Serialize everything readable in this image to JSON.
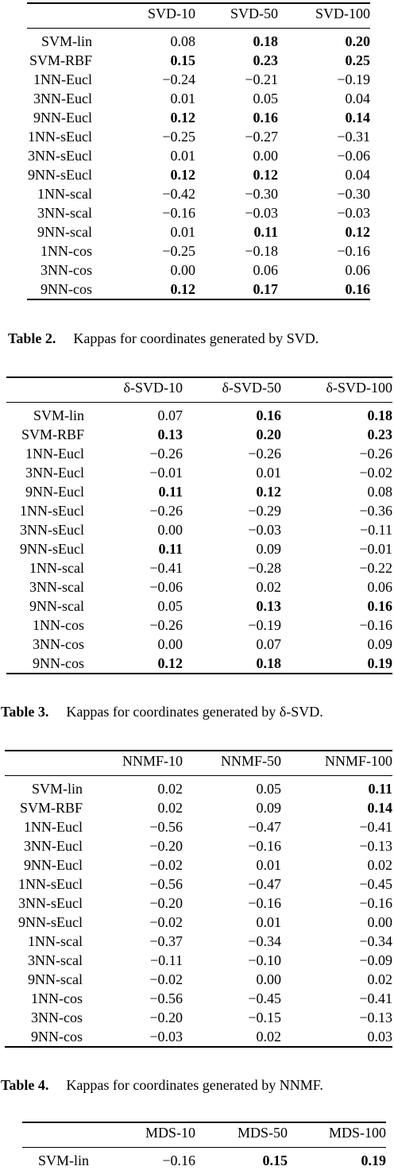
{
  "tables": [
    {
      "label": "Table 2.",
      "caption": "Kappas for coordinates generated by SVD.",
      "headers": [
        "SVD-10",
        "SVD-50",
        "SVD-100"
      ],
      "rows": [
        {
          "name": "SVM-lin",
          "values": [
            "0.08",
            "0.18",
            "0.20"
          ],
          "bold": [
            false,
            true,
            true
          ]
        },
        {
          "name": "SVM-RBF",
          "values": [
            "0.15",
            "0.23",
            "0.25"
          ],
          "bold": [
            true,
            true,
            true
          ]
        },
        {
          "name": "1NN-Eucl",
          "values": [
            "−0.24",
            "−0.21",
            "−0.19"
          ],
          "bold": [
            false,
            false,
            false
          ]
        },
        {
          "name": "3NN-Eucl",
          "values": [
            "0.01",
            "0.05",
            "0.04"
          ],
          "bold": [
            false,
            false,
            false
          ]
        },
        {
          "name": "9NN-Eucl",
          "values": [
            "0.12",
            "0.16",
            "0.14"
          ],
          "bold": [
            true,
            true,
            true
          ]
        },
        {
          "name": "1NN-sEucl",
          "values": [
            "−0.25",
            "−0.27",
            "−0.31"
          ],
          "bold": [
            false,
            false,
            false
          ]
        },
        {
          "name": "3NN-sEucl",
          "values": [
            "0.01",
            "0.00",
            "−0.06"
          ],
          "bold": [
            false,
            false,
            false
          ]
        },
        {
          "name": "9NN-sEucl",
          "values": [
            "0.12",
            "0.12",
            "0.04"
          ],
          "bold": [
            true,
            true,
            false
          ]
        },
        {
          "name": "1NN-scal",
          "values": [
            "−0.42",
            "−0.30",
            "−0.30"
          ],
          "bold": [
            false,
            false,
            false
          ]
        },
        {
          "name": "3NN-scal",
          "values": [
            "−0.16",
            "−0.03",
            "−0.03"
          ],
          "bold": [
            false,
            false,
            false
          ]
        },
        {
          "name": "9NN-scal",
          "values": [
            "0.01",
            "0.11",
            "0.12"
          ],
          "bold": [
            false,
            true,
            true
          ]
        },
        {
          "name": "1NN-cos",
          "values": [
            "−0.25",
            "−0.18",
            "−0.16"
          ],
          "bold": [
            false,
            false,
            false
          ]
        },
        {
          "name": "3NN-cos",
          "values": [
            "0.00",
            "0.06",
            "0.06"
          ],
          "bold": [
            false,
            false,
            false
          ]
        },
        {
          "name": "9NN-cos",
          "values": [
            "0.12",
            "0.17",
            "0.16"
          ],
          "bold": [
            true,
            true,
            true
          ]
        }
      ]
    },
    {
      "label": "Table 3.",
      "caption": "Kappas for coordinates generated by δ-SVD.",
      "headers": [
        "δ-SVD-10",
        "δ-SVD-50",
        "δ-SVD-100"
      ],
      "rows": [
        {
          "name": "SVM-lin",
          "values": [
            "0.07",
            "0.16",
            "0.18"
          ],
          "bold": [
            false,
            true,
            true
          ]
        },
        {
          "name": "SVM-RBF",
          "values": [
            "0.13",
            "0.20",
            "0.23"
          ],
          "bold": [
            true,
            true,
            true
          ]
        },
        {
          "name": "1NN-Eucl",
          "values": [
            "−0.26",
            "−0.26",
            "−0.26"
          ],
          "bold": [
            false,
            false,
            false
          ]
        },
        {
          "name": "3NN-Eucl",
          "values": [
            "−0.01",
            "0.01",
            "−0.02"
          ],
          "bold": [
            false,
            false,
            false
          ]
        },
        {
          "name": "9NN-Eucl",
          "values": [
            "0.11",
            "0.12",
            "0.08"
          ],
          "bold": [
            true,
            true,
            false
          ]
        },
        {
          "name": "1NN-sEucl",
          "values": [
            "−0.26",
            "−0.29",
            "−0.36"
          ],
          "bold": [
            false,
            false,
            false
          ]
        },
        {
          "name": "3NN-sEucl",
          "values": [
            "0.00",
            "−0.03",
            "−0.11"
          ],
          "bold": [
            false,
            false,
            false
          ]
        },
        {
          "name": "9NN-sEucl",
          "values": [
            "0.11",
            "0.09",
            "−0.01"
          ],
          "bold": [
            true,
            false,
            false
          ]
        },
        {
          "name": "1NN-scal",
          "values": [
            "−0.41",
            "−0.28",
            "−0.22"
          ],
          "bold": [
            false,
            false,
            false
          ]
        },
        {
          "name": "3NN-scal",
          "values": [
            "−0.06",
            "0.02",
            "0.06"
          ],
          "bold": [
            false,
            false,
            false
          ]
        },
        {
          "name": "9NN-scal",
          "values": [
            "0.05",
            "0.13",
            "0.16"
          ],
          "bold": [
            false,
            true,
            true
          ]
        },
        {
          "name": "1NN-cos",
          "values": [
            "−0.26",
            "−0.19",
            "−0.16"
          ],
          "bold": [
            false,
            false,
            false
          ]
        },
        {
          "name": "3NN-cos",
          "values": [
            "0.00",
            "0.07",
            "0.09"
          ],
          "bold": [
            false,
            false,
            false
          ]
        },
        {
          "name": "9NN-cos",
          "values": [
            "0.12",
            "0.18",
            "0.19"
          ],
          "bold": [
            true,
            true,
            true
          ]
        }
      ]
    },
    {
      "label": "Table 4.",
      "caption": "Kappas for coordinates generated by NNMF.",
      "headers": [
        "NNMF-10",
        "NNMF-50",
        "NNMF-100"
      ],
      "rows": [
        {
          "name": "SVM-lin",
          "values": [
            "0.02",
            "0.05",
            "0.11"
          ],
          "bold": [
            false,
            false,
            true
          ]
        },
        {
          "name": "SVM-RBF",
          "values": [
            "0.02",
            "0.09",
            "0.14"
          ],
          "bold": [
            false,
            false,
            true
          ]
        },
        {
          "name": "1NN-Eucl",
          "values": [
            "−0.56",
            "−0.47",
            "−0.41"
          ],
          "bold": [
            false,
            false,
            false
          ]
        },
        {
          "name": "3NN-Eucl",
          "values": [
            "−0.20",
            "−0.16",
            "−0.13"
          ],
          "bold": [
            false,
            false,
            false
          ]
        },
        {
          "name": "9NN-Eucl",
          "values": [
            "−0.02",
            "0.01",
            "0.02"
          ],
          "bold": [
            false,
            false,
            false
          ]
        },
        {
          "name": "1NN-sEucl",
          "values": [
            "−0.56",
            "−0.47",
            "−0.45"
          ],
          "bold": [
            false,
            false,
            false
          ]
        },
        {
          "name": "3NN-sEucl",
          "values": [
            "−0.20",
            "−0.16",
            "−0.16"
          ],
          "bold": [
            false,
            false,
            false
          ]
        },
        {
          "name": "9NN-sEucl",
          "values": [
            "−0.02",
            "0.01",
            "0.00"
          ],
          "bold": [
            false,
            false,
            false
          ]
        },
        {
          "name": "1NN-scal",
          "values": [
            "−0.37",
            "−0.34",
            "−0.34"
          ],
          "bold": [
            false,
            false,
            false
          ]
        },
        {
          "name": "3NN-scal",
          "values": [
            "−0.11",
            "−0.10",
            "−0.09"
          ],
          "bold": [
            false,
            false,
            false
          ]
        },
        {
          "name": "9NN-scal",
          "values": [
            "−0.02",
            "0.00",
            "0.02"
          ],
          "bold": [
            false,
            false,
            false
          ]
        },
        {
          "name": "1NN-cos",
          "values": [
            "−0.56",
            "−0.45",
            "−0.41"
          ],
          "bold": [
            false,
            false,
            false
          ]
        },
        {
          "name": "3NN-cos",
          "values": [
            "−0.20",
            "−0.15",
            "−0.13"
          ],
          "bold": [
            false,
            false,
            false
          ]
        },
        {
          "name": "9NN-cos",
          "values": [
            "−0.03",
            "0.02",
            "0.03"
          ],
          "bold": [
            false,
            false,
            false
          ]
        }
      ]
    },
    {
      "label": "",
      "caption": "",
      "headers": [
        "MDS-10",
        "MDS-50",
        "MDS-100"
      ],
      "rows": [
        {
          "name": "SVM-lin",
          "values": [
            "−0.16",
            "0.15",
            "0.19"
          ],
          "bold": [
            false,
            true,
            true
          ]
        }
      ]
    }
  ]
}
